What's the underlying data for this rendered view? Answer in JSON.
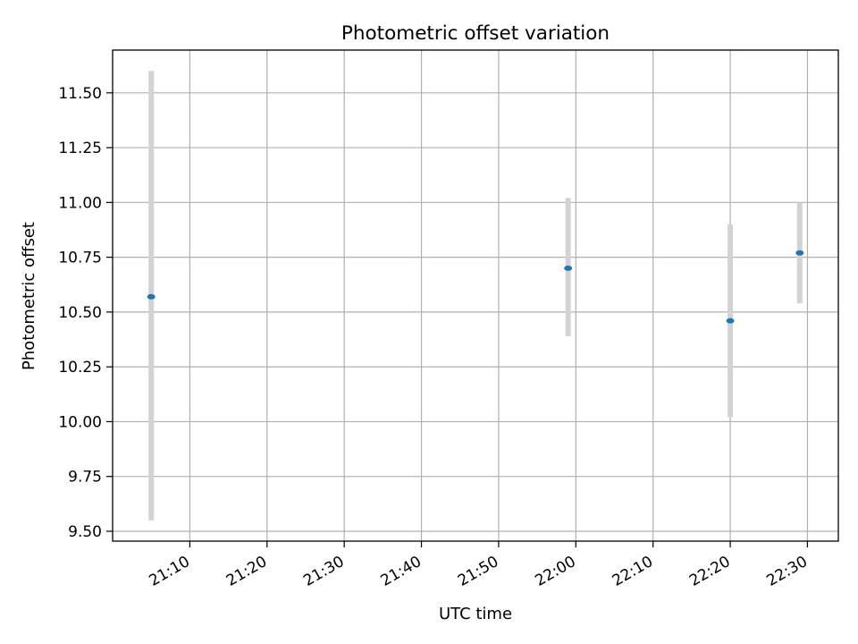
{
  "chart_data": {
    "type": "scatter",
    "title": "Photometric offset variation",
    "xlabel": "UTC time",
    "ylabel": "Photometric offset",
    "x_ticks": [
      "21:10",
      "21:20",
      "21:30",
      "21:40",
      "21:50",
      "22:00",
      "22:10",
      "22:20",
      "22:30"
    ],
    "y_ticks": [
      "9.50",
      "9.75",
      "10.00",
      "10.25",
      "10.50",
      "10.75",
      "11.00",
      "11.25",
      "11.50"
    ],
    "xlim": [
      "21:00",
      "22:34"
    ],
    "ylim": [
      9.455,
      11.695
    ],
    "grid": true,
    "points": [
      {
        "x": "21:05",
        "y": 10.57,
        "err_low": 9.55,
        "err_high": 11.6
      },
      {
        "x": "21:59",
        "y": 10.7,
        "err_low": 10.39,
        "err_high": 11.02
      },
      {
        "x": "22:20",
        "y": 10.46,
        "err_low": 10.02,
        "err_high": 10.9
      },
      {
        "x": "22:29",
        "y": 10.77,
        "err_low": 10.54,
        "err_high": 11.0
      }
    ],
    "colors": {
      "marker": "#1f77b4",
      "errorbar": "#d3d3d3",
      "grid": "#b0b0b0",
      "axes": "#000000"
    }
  }
}
